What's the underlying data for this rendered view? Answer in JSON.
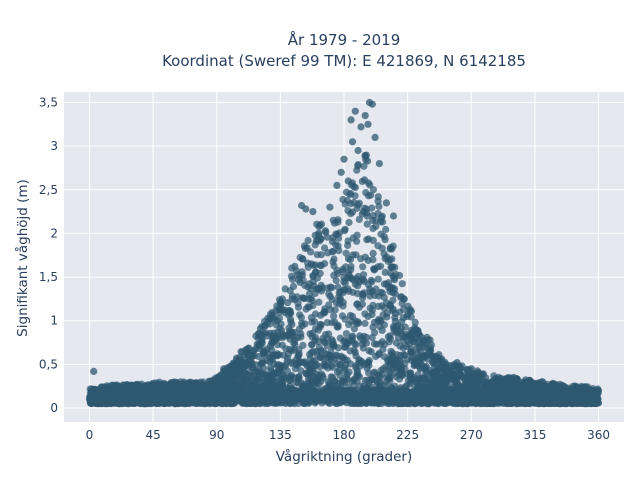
{
  "chart_data": {
    "type": "scatter",
    "title_lines": [
      "År 1979 - 2019",
      "Koordinat (Sweref 99 TM): E 421869, N 6142185"
    ],
    "xlabel": "Vågriktning (grader)",
    "ylabel": "Signifikant våghöjd (m)",
    "xlim": [
      -18,
      378
    ],
    "ylim": [
      -0.16,
      3.62
    ],
    "xticks": [
      0,
      45,
      90,
      135,
      180,
      225,
      270,
      315,
      360
    ],
    "xtick_labels": [
      "0",
      "45",
      "90",
      "135",
      "180",
      "225",
      "270",
      "315",
      "360"
    ],
    "yticks": [
      0,
      0.5,
      1,
      1.5,
      2,
      2.5,
      3,
      3.5
    ],
    "ytick_labels": [
      "0",
      "0,5",
      "1",
      "1,5",
      "2",
      "2,5",
      "3",
      "3,5"
    ],
    "grid": true,
    "marker_color": "#2e5870",
    "background_color": "#e5e8ef",
    "grid_color": "#ffffff",
    "series": [
      {
        "x": [
          0,
          10,
          20,
          30,
          40,
          50,
          60,
          70,
          80,
          90,
          100,
          110,
          120,
          130,
          140,
          150,
          155,
          160,
          165,
          170,
          175,
          180,
          185,
          190,
          195,
          200,
          205,
          210,
          215,
          220,
          225,
          230,
          240,
          250,
          260,
          270,
          280,
          290,
          300,
          310,
          320,
          330,
          340,
          350,
          360
        ],
        "y_max": [
          0.22,
          0.25,
          0.27,
          0.28,
          0.28,
          0.3,
          0.3,
          0.3,
          0.3,
          0.35,
          0.5,
          0.7,
          0.9,
          1.15,
          1.5,
          1.85,
          2.0,
          2.1,
          2.2,
          2.2,
          2.3,
          2.45,
          2.55,
          2.8,
          2.95,
          2.7,
          2.4,
          2.1,
          1.85,
          1.5,
          1.25,
          1.0,
          0.8,
          0.55,
          0.5,
          0.45,
          0.4,
          0.35,
          0.35,
          0.32,
          0.3,
          0.28,
          0.26,
          0.25,
          0.22
        ],
        "y_min": 0.05,
        "outliers": [
          [
            3,
            0.42
          ],
          [
            95,
            0.45
          ],
          [
            105,
            0.47
          ],
          [
            115,
            0.5
          ],
          [
            120,
            0.72
          ],
          [
            150,
            2.32
          ],
          [
            153,
            2.28
          ],
          [
            158,
            2.25
          ],
          [
            170,
            2.3
          ],
          [
            175,
            2.55
          ],
          [
            178,
            2.7
          ],
          [
            180,
            2.85
          ],
          [
            183,
            2.6
          ],
          [
            185,
            3.3
          ],
          [
            186,
            3.05
          ],
          [
            188,
            3.4
          ],
          [
            190,
            2.95
          ],
          [
            192,
            3.22
          ],
          [
            195,
            3.35
          ],
          [
            197,
            3.25
          ],
          [
            198,
            3.5
          ],
          [
            200,
            3.48
          ],
          [
            202,
            3.1
          ],
          [
            205,
            2.8
          ],
          [
            210,
            2.35
          ],
          [
            215,
            2.2
          ],
          [
            230,
            0.8
          ],
          [
            240,
            0.62
          ],
          [
            245,
            0.58
          ],
          [
            260,
            0.52
          ],
          [
            270,
            0.45
          ],
          [
            300,
            0.35
          ],
          [
            320,
            0.3
          ]
        ]
      }
    ]
  }
}
